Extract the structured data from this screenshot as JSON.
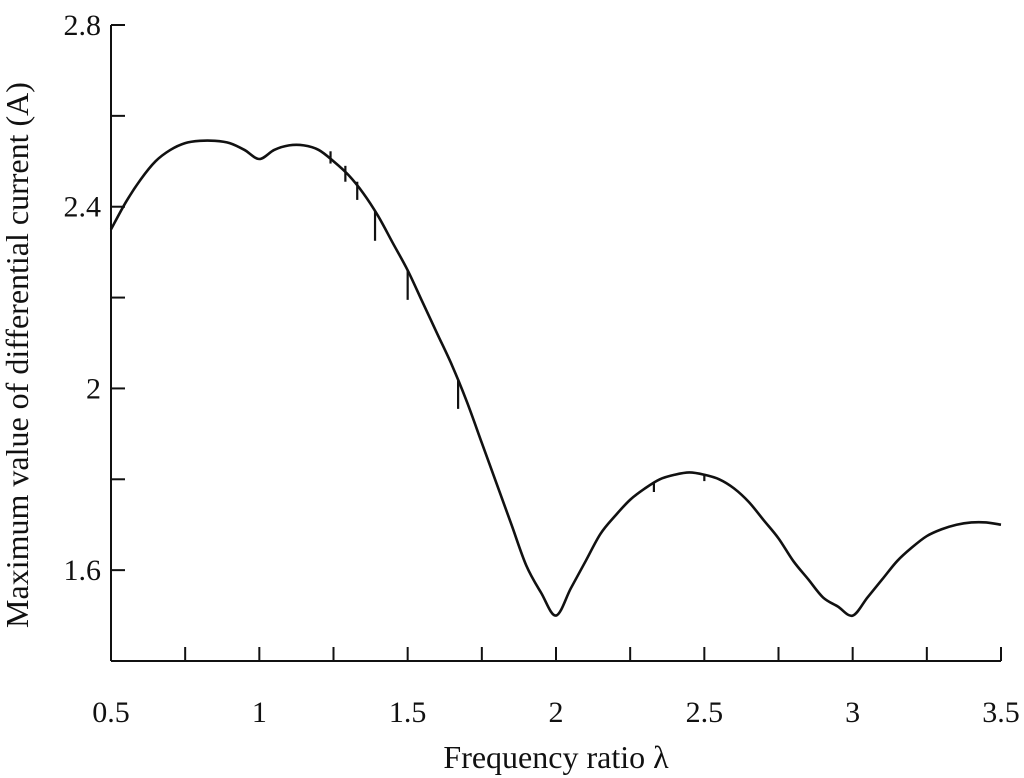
{
  "chart_data": {
    "type": "line",
    "title": "",
    "xlabel": "Frequency ratio λ",
    "ylabel": "Maximum value of differential current (A)",
    "xlim": [
      0.5,
      3.5
    ],
    "ylim": [
      1.4,
      2.8
    ],
    "x_ticks_labeled": [
      "0.5",
      "1",
      "1.5",
      "2",
      "2.5",
      "3",
      "3.5"
    ],
    "x_ticks_labeled_values": [
      0.5,
      1,
      1.5,
      2,
      2.5,
      3,
      3.5
    ],
    "x_minor_ticks": [
      0.75,
      1.25,
      1.75,
      2.25,
      2.75,
      3.25
    ],
    "y_ticks_labeled": [
      "1.6",
      "2",
      "2.4",
      "2.8"
    ],
    "y_ticks_labeled_values": [
      1.6,
      2.0,
      2.4,
      2.8
    ],
    "y_minor_ticks": [
      1.8,
      2.2,
      2.6
    ],
    "grid": false,
    "legend": "none",
    "series": [
      {
        "x": [
          0.5,
          0.55,
          0.6,
          0.65,
          0.7,
          0.75,
          0.8,
          0.85,
          0.9,
          0.95,
          1.0,
          1.05,
          1.1,
          1.15,
          1.2,
          1.25,
          1.3,
          1.35,
          1.4,
          1.45,
          1.5,
          1.55,
          1.6,
          1.65,
          1.7,
          1.75,
          1.8,
          1.85,
          1.9,
          1.95,
          2.0,
          2.05,
          2.1,
          2.15,
          2.2,
          2.25,
          2.3,
          2.35,
          2.4,
          2.45,
          2.5,
          2.55,
          2.6,
          2.65,
          2.7,
          2.75,
          2.8,
          2.85,
          2.9,
          2.95,
          3.0,
          3.05,
          3.1,
          3.15,
          3.2,
          3.25,
          3.3,
          3.35,
          3.4,
          3.45,
          3.5
        ],
        "y": [
          2.35,
          2.41,
          2.46,
          2.5,
          2.525,
          2.54,
          2.545,
          2.545,
          2.54,
          2.525,
          2.505,
          2.525,
          2.535,
          2.535,
          2.525,
          2.5,
          2.47,
          2.43,
          2.38,
          2.32,
          2.26,
          2.19,
          2.12,
          2.05,
          1.97,
          1.88,
          1.79,
          1.7,
          1.61,
          1.55,
          1.5,
          1.56,
          1.62,
          1.68,
          1.72,
          1.755,
          1.78,
          1.8,
          1.81,
          1.815,
          1.81,
          1.8,
          1.78,
          1.75,
          1.71,
          1.67,
          1.62,
          1.58,
          1.54,
          1.52,
          1.5,
          1.54,
          1.58,
          1.62,
          1.65,
          1.675,
          1.69,
          1.7,
          1.705,
          1.705,
          1.7
        ]
      }
    ],
    "spikes": [
      {
        "x": 1.24,
        "y_top": 2.522,
        "y_bottom": 2.495
      },
      {
        "x": 1.29,
        "y_top": 2.49,
        "y_bottom": 2.455
      },
      {
        "x": 1.33,
        "y_top": 2.455,
        "y_bottom": 2.415
      },
      {
        "x": 1.39,
        "y_top": 2.39,
        "y_bottom": 2.325
      },
      {
        "x": 1.5,
        "y_top": 2.26,
        "y_bottom": 2.195
      },
      {
        "x": 1.67,
        "y_top": 2.02,
        "y_bottom": 1.955
      },
      {
        "x": 2.33,
        "y_top": 1.792,
        "y_bottom": 1.772
      },
      {
        "x": 2.5,
        "y_top": 1.81,
        "y_bottom": 1.796
      }
    ]
  }
}
